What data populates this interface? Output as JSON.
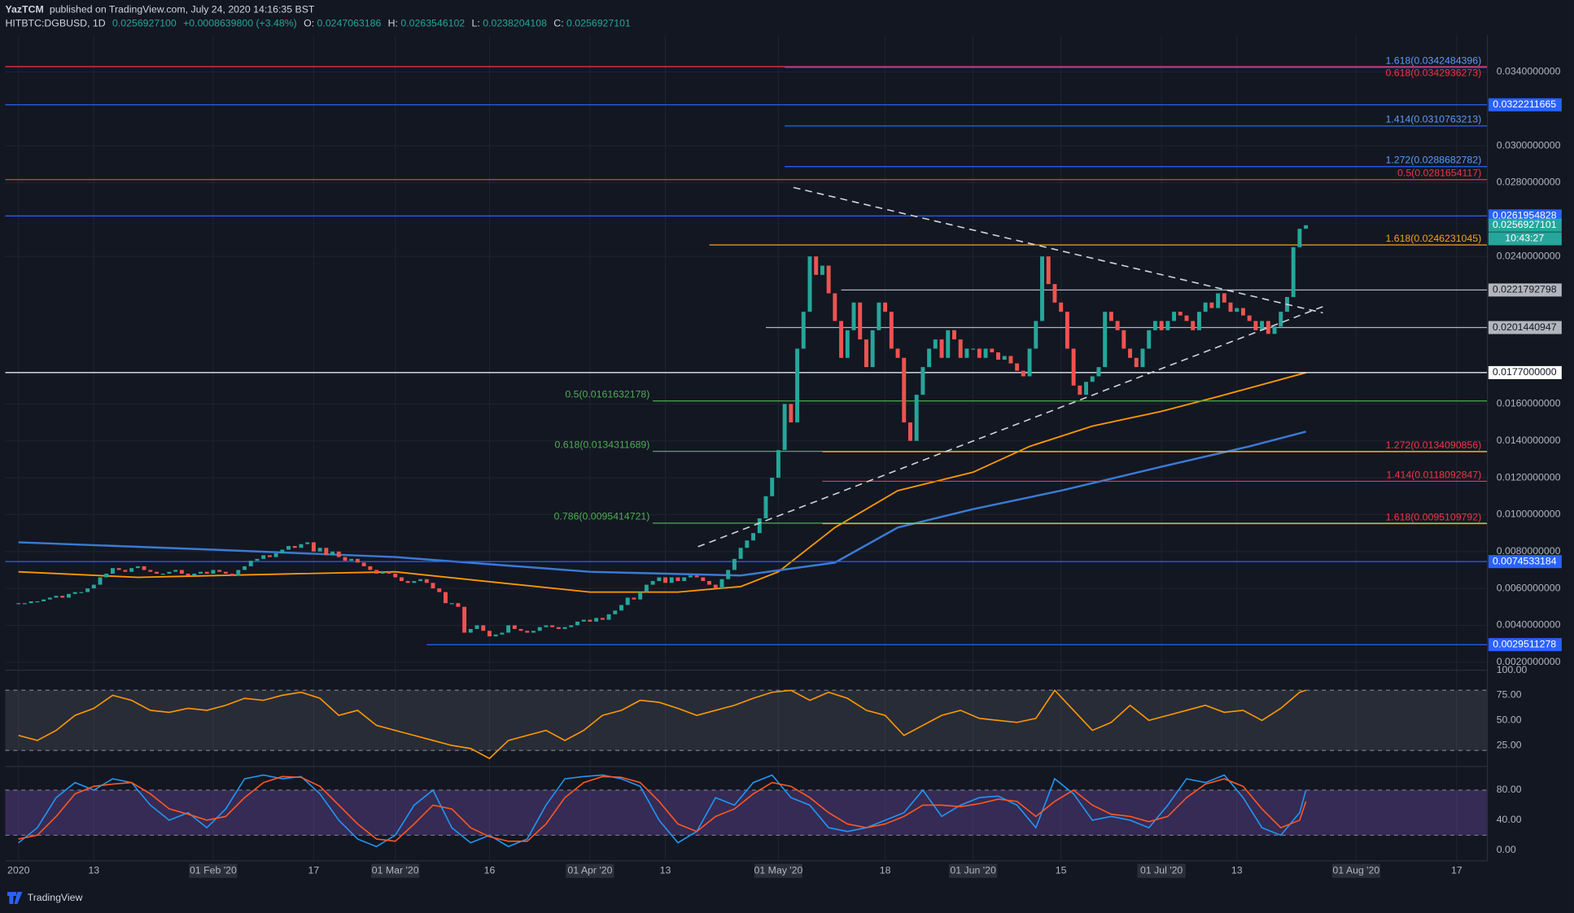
{
  "header": {
    "author": "YazTCM",
    "byline": "published on TradingView.com, July 24, 2020 14:16:35 BST"
  },
  "legend": {
    "symbol": "HITBTC:DGBUSD, 1D",
    "last": "0.0256927100",
    "change": "+0.0008639800 (+3.48%)",
    "open_key": "O:",
    "open": "0.0247063186",
    "high_key": "H:",
    "high": "0.0263546102",
    "low_key": "L:",
    "low": "0.0238204108",
    "close_key": "C:",
    "close": "0.0256927101"
  },
  "footer": {
    "brand": "TradingView"
  },
  "chart_data": [
    {
      "type": "candlestick",
      "up_color": "#26a69a",
      "down_color": "#ef5350",
      "grid": true,
      "xlim": [
        -1.1,
        234.9
      ],
      "ylim": [
        0.001565,
        0.036
      ],
      "yticks": [
        {
          "value": 0.034,
          "label": "0.0340000000"
        },
        {
          "value": 0.03,
          "label": "0.0300000000"
        },
        {
          "value": 0.028,
          "label": "0.0280000000"
        },
        {
          "value": 0.024,
          "label": "0.0240000000"
        },
        {
          "value": 0.016,
          "label": "0.0160000000"
        },
        {
          "value": 0.014,
          "label": "0.0140000000"
        },
        {
          "value": 0.012,
          "label": "0.0120000000"
        },
        {
          "value": 0.01,
          "label": "0.0100000000"
        },
        {
          "value": 0.008,
          "label": "0.0080000000"
        },
        {
          "value": 0.006,
          "label": "0.0060000000"
        },
        {
          "value": 0.004,
          "label": "0.0040000000"
        },
        {
          "value": 0.002,
          "label": "0.0020000000"
        }
      ],
      "xticks": [
        {
          "value": 1,
          "label": "2020"
        },
        {
          "value": 13,
          "label": "13"
        },
        {
          "value": 32,
          "label": "01 Feb '20"
        },
        {
          "value": 48,
          "label": "17"
        },
        {
          "value": 61,
          "label": "01 Mar '20"
        },
        {
          "value": 76,
          "label": "16"
        },
        {
          "value": 92,
          "label": "01 Apr '20"
        },
        {
          "value": 104,
          "label": "13"
        },
        {
          "value": 122,
          "label": "01 May '20"
        },
        {
          "value": 139,
          "label": "18"
        },
        {
          "value": 153,
          "label": "01 Jun '20"
        },
        {
          "value": 167,
          "label": "15"
        },
        {
          "value": 183,
          "label": "01 Jul '20"
        },
        {
          "value": 195,
          "label": "13"
        },
        {
          "value": 214,
          "label": "01 Aug '20"
        },
        {
          "value": 230,
          "label": "17"
        }
      ],
      "x": [
        1,
        2,
        3,
        4,
        5,
        6,
        7,
        8,
        9,
        10,
        11,
        12,
        13,
        14,
        15,
        16,
        17,
        18,
        19,
        20,
        21,
        22,
        23,
        24,
        25,
        26,
        27,
        28,
        29,
        30,
        31,
        32,
        33,
        34,
        35,
        36,
        37,
        38,
        39,
        40,
        41,
        42,
        43,
        44,
        45,
        46,
        47,
        48,
        49,
        50,
        51,
        52,
        53,
        54,
        55,
        56,
        57,
        58,
        59,
        60,
        61,
        62,
        63,
        64,
        65,
        66,
        67,
        68,
        69,
        70,
        71,
        72,
        73,
        74,
        75,
        76,
        77,
        78,
        79,
        80,
        81,
        82,
        83,
        84,
        85,
        86,
        87,
        88,
        89,
        90,
        91,
        92,
        93,
        94,
        95,
        96,
        97,
        98,
        99,
        100,
        101,
        102,
        103,
        104,
        105,
        106,
        107,
        108,
        109,
        110,
        111,
        112,
        113,
        114,
        115,
        116,
        117,
        118,
        119,
        120,
        121,
        122,
        123,
        124,
        125,
        126,
        127,
        128,
        129,
        130,
        131,
        132,
        133,
        134,
        135,
        136,
        137,
        138,
        139,
        140,
        141,
        142,
        143,
        144,
        145,
        146,
        147,
        148,
        149,
        150,
        151,
        152,
        153,
        154,
        155,
        156,
        157,
        158,
        159,
        160,
        161,
        162,
        163,
        164,
        165,
        166,
        167,
        168,
        169,
        170,
        171,
        172,
        173,
        174,
        175,
        176,
        177,
        178,
        179,
        180,
        181,
        182,
        183,
        184,
        185,
        186,
        187,
        188,
        189,
        190,
        191,
        192,
        193,
        194,
        195,
        196,
        197,
        198,
        199,
        200,
        201,
        202,
        203,
        204,
        205,
        206
      ],
      "values": [
        0.0052,
        0.0052,
        0.0053,
        0.0053,
        0.0054,
        0.0055,
        0.0056,
        0.0055,
        0.0057,
        0.0058,
        0.0058,
        0.006,
        0.0062,
        0.0066,
        0.0068,
        0.0071,
        0.007,
        0.0069,
        0.0071,
        0.0072,
        0.007,
        0.0069,
        0.0068,
        0.0068,
        0.0069,
        0.007,
        0.0068,
        0.0067,
        0.0068,
        0.0069,
        0.0068,
        0.007,
        0.0069,
        0.0068,
        0.0067,
        0.007,
        0.0072,
        0.0075,
        0.0076,
        0.0078,
        0.0077,
        0.0079,
        0.0081,
        0.0083,
        0.0082,
        0.0084,
        0.0085,
        0.008,
        0.0082,
        0.0078,
        0.008,
        0.0077,
        0.0075,
        0.0076,
        0.0074,
        0.0072,
        0.007,
        0.0068,
        0.0069,
        0.0068,
        0.0066,
        0.0064,
        0.0063,
        0.0064,
        0.0065,
        0.0063,
        0.006,
        0.0058,
        0.0052,
        0.0052,
        0.005,
        0.0036,
        0.0038,
        0.004,
        0.0037,
        0.0034,
        0.0035,
        0.0036,
        0.004,
        0.0038,
        0.0037,
        0.0036,
        0.0037,
        0.0039,
        0.004,
        0.0039,
        0.0038,
        0.0039,
        0.004,
        0.0042,
        0.0043,
        0.0042,
        0.0044,
        0.0043,
        0.0046,
        0.0048,
        0.0051,
        0.0055,
        0.0054,
        0.0058,
        0.0062,
        0.0064,
        0.0066,
        0.0063,
        0.0066,
        0.0064,
        0.0066,
        0.0067,
        0.0066,
        0.0064,
        0.0062,
        0.006,
        0.0065,
        0.007,
        0.0076,
        0.0082,
        0.0086,
        0.009,
        0.0098,
        0.011,
        0.012,
        0.0135,
        0.016,
        0.015,
        0.019,
        0.021,
        0.024,
        0.023,
        0.0235,
        0.022,
        0.0205,
        0.0185,
        0.02,
        0.0215,
        0.0195,
        0.018,
        0.02,
        0.0215,
        0.021,
        0.019,
        0.0185,
        0.015,
        0.014,
        0.0165,
        0.018,
        0.019,
        0.0195,
        0.0185,
        0.02,
        0.0195,
        0.0185,
        0.019,
        0.019,
        0.0185,
        0.019,
        0.0188,
        0.0184,
        0.0186,
        0.0182,
        0.0178,
        0.0175,
        0.019,
        0.0205,
        0.024,
        0.0225,
        0.0215,
        0.021,
        0.019,
        0.017,
        0.0165,
        0.0172,
        0.0175,
        0.018,
        0.021,
        0.0205,
        0.02,
        0.019,
        0.0185,
        0.018,
        0.019,
        0.02,
        0.0205,
        0.02,
        0.0205,
        0.021,
        0.0208,
        0.0205,
        0.02,
        0.021,
        0.0215,
        0.0212,
        0.022,
        0.0215,
        0.021,
        0.0212,
        0.0208,
        0.0205,
        0.02,
        0.0205,
        0.0198,
        0.0202,
        0.021,
        0.0218,
        0.0245,
        0.0255,
        0.0256927101
      ],
      "last_label": "0.0256927101",
      "last_color": "#26a69a",
      "countdown": "10:43:27",
      "moving_averages": [
        {
          "color": "#ff9800",
          "x": [
            1,
            20,
            46,
            61,
            75,
            92,
            106,
            116,
            122,
            131,
            141,
            153,
            162,
            172,
            183,
            192,
            206
          ],
          "values": [
            0.0069,
            0.0066,
            0.0068,
            0.0069,
            0.0064,
            0.0058,
            0.0058,
            0.0061,
            0.0069,
            0.0093,
            0.0113,
            0.0123,
            0.0137,
            0.0148,
            0.0156,
            0.0164,
            0.0177
          ]
        },
        {
          "color": "#3a7bd5",
          "x": [
            1,
            32,
            61,
            92,
            116,
            131,
            141,
            153,
            167,
            183,
            197,
            206
          ],
          "values": [
            0.0085,
            0.0081,
            0.0077,
            0.0069,
            0.0067,
            0.0074,
            0.0093,
            0.0103,
            0.0113,
            0.0126,
            0.0137,
            0.0145
          ]
        }
      ],
      "trendlines": [
        {
          "x": [
            124.4,
            208.7
          ],
          "values": [
            0.02774,
            0.02094
          ]
        },
        {
          "x": [
            109.2,
            209
          ],
          "values": [
            0.00826,
            0.02132
          ]
        }
      ],
      "levels": [
        {
          "value": 0.0342936273,
          "color": "#f23645",
          "text": "0.618(0.0342936273)",
          "text_below": true
        },
        {
          "value": 0.0342484396,
          "color": "#2962ff",
          "from": 123,
          "text": "1.618(0.0342484396)",
          "text_color": "#5b9cf6"
        },
        {
          "value": 0.0322211665,
          "color": "#2962ff",
          "axis_label": "0.0322211665"
        },
        {
          "value": 0.0310763213,
          "color": "#2962ff",
          "from": 123,
          "text": "1.414(0.0310763213)",
          "text_color": "#5b9cf6"
        },
        {
          "value": 0.0288682782,
          "color": "#2962ff",
          "from": 123,
          "text": "1.272(0.0288682782)",
          "text_color": "#5b9cf6"
        },
        {
          "value": 0.0281654117,
          "color": "#f23645",
          "text": "0.5(0.0281654117)"
        },
        {
          "value": 0.0261954828,
          "color": "#2962ff",
          "axis_label": "0.0261954828"
        },
        {
          "value": 0.0246231045,
          "color": "#f7a21b",
          "from": 111,
          "text": "1.618(0.0246231045)"
        },
        {
          "value": 0.0221792798,
          "color": "#b2b5be",
          "from": 132,
          "axis_label": "0.0221792798"
        },
        {
          "value": 0.0201440947,
          "color": "#b2b5be",
          "from": 120,
          "axis_label": "0.0201440947"
        },
        {
          "value": 0.0177,
          "color": "#ffffff",
          "axis_label": "0.0177000000"
        },
        {
          "value": 0.0161632178,
          "color": "#4caf50",
          "from": 102,
          "text": "0.5(0.0161632178)",
          "text_at": "start"
        },
        {
          "value": 0.0134311689,
          "color": "#4caf50",
          "from": 102,
          "text": "0.618(0.0134311689)",
          "text_at": "start"
        },
        {
          "value": 0.0134090856,
          "color": "#f7a21b",
          "from": 129,
          "text": "1.272(0.0134090856)",
          "text_color": "#f23645"
        },
        {
          "value": 0.0118092847,
          "color": "#f23645",
          "from": 129,
          "text": "1.414(0.0118092847)"
        },
        {
          "value": 0.0095414721,
          "color": "#4caf50",
          "from": 102,
          "text": "0.786(0.0095414721)",
          "text_at": "start"
        },
        {
          "value": 0.0095109792,
          "color": "#f7a21b",
          "from": 129,
          "text": "1.618(0.0095109792)",
          "text_color": "#f23645"
        },
        {
          "value": 0.0074533184,
          "color": "#2962ff",
          "axis_label": "0.0074533184"
        },
        {
          "value": 0.0029511278,
          "color": "#2962ff",
          "from": 66,
          "axis_label": "0.0029511278"
        }
      ]
    },
    {
      "type": "line",
      "color": "#ff9800",
      "ylim": [
        6,
        100
      ],
      "yticks": [
        {
          "value": 100,
          "label": "100.00"
        },
        {
          "value": 75,
          "label": "75.00"
        },
        {
          "value": 50,
          "label": "50.00"
        },
        {
          "value": 25,
          "label": "25.00"
        }
      ],
      "bands": [
        80,
        20
      ],
      "band_color": "rgba(120,123,134,0.22)",
      "x": [
        1,
        4,
        7,
        10,
        13,
        16,
        19,
        22,
        25,
        28,
        31,
        34,
        37,
        40,
        43,
        46,
        49,
        52,
        55,
        58,
        61,
        64,
        67,
        70,
        73,
        76,
        79,
        82,
        85,
        88,
        91,
        94,
        97,
        100,
        103,
        106,
        109,
        112,
        115,
        118,
        121,
        124,
        127,
        130,
        133,
        136,
        139,
        142,
        145,
        148,
        151,
        154,
        157,
        160,
        163,
        166,
        169,
        172,
        175,
        178,
        181,
        184,
        187,
        190,
        193,
        196,
        199,
        202,
        205,
        206
      ],
      "values": [
        35,
        30,
        40,
        55,
        62,
        75,
        70,
        60,
        58,
        62,
        60,
        65,
        72,
        70,
        75,
        78,
        72,
        55,
        60,
        45,
        40,
        35,
        30,
        25,
        22,
        12,
        30,
        35,
        40,
        30,
        40,
        55,
        60,
        70,
        68,
        62,
        55,
        60,
        65,
        72,
        78,
        80,
        70,
        78,
        72,
        60,
        55,
        35,
        45,
        55,
        60,
        52,
        50,
        48,
        52,
        80,
        60,
        40,
        48,
        65,
        50,
        55,
        60,
        65,
        58,
        60,
        50,
        62,
        78,
        80
      ]
    },
    {
      "type": "line",
      "ylim": [
        -14,
        110
      ],
      "yticks": [
        {
          "value": 80,
          "label": "80.00"
        },
        {
          "value": 40,
          "label": "40.00"
        },
        {
          "value": 0,
          "label": "0.00"
        }
      ],
      "bands": [
        80,
        20
      ],
      "band_color": "rgba(126,87,194,0.32)",
      "x": [
        1,
        4,
        7,
        10,
        13,
        16,
        19,
        22,
        25,
        28,
        31,
        34,
        37,
        40,
        43,
        46,
        49,
        52,
        55,
        58,
        61,
        64,
        67,
        70,
        73,
        76,
        79,
        82,
        85,
        88,
        91,
        94,
        97,
        100,
        103,
        106,
        109,
        112,
        115,
        118,
        121,
        124,
        127,
        130,
        133,
        136,
        139,
        142,
        145,
        148,
        151,
        154,
        157,
        160,
        163,
        166,
        169,
        172,
        175,
        178,
        181,
        184,
        187,
        190,
        193,
        196,
        199,
        202,
        205,
        206
      ],
      "series": [
        {
          "color": "#2196f3",
          "values": [
            10,
            30,
            70,
            90,
            80,
            95,
            90,
            60,
            40,
            50,
            30,
            55,
            95,
            100,
            95,
            98,
            75,
            40,
            15,
            5,
            20,
            60,
            80,
            30,
            10,
            20,
            5,
            15,
            60,
            95,
            98,
            100,
            95,
            85,
            40,
            10,
            25,
            70,
            60,
            90,
            100,
            70,
            60,
            30,
            25,
            30,
            40,
            50,
            80,
            45,
            60,
            70,
            72,
            60,
            30,
            95,
            75,
            40,
            45,
            40,
            30,
            60,
            95,
            90,
            100,
            70,
            30,
            20,
            50,
            80
          ]
        },
        {
          "color": "#ff5722",
          "values": [
            15,
            20,
            45,
            75,
            85,
            88,
            90,
            75,
            55,
            48,
            40,
            45,
            70,
            90,
            98,
            97,
            85,
            60,
            35,
            15,
            12,
            35,
            60,
            55,
            30,
            18,
            12,
            12,
            35,
            70,
            90,
            98,
            97,
            90,
            65,
            35,
            25,
            45,
            55,
            75,
            90,
            85,
            70,
            50,
            35,
            30,
            35,
            45,
            60,
            60,
            58,
            62,
            68,
            65,
            45,
            65,
            80,
            60,
            48,
            45,
            38,
            45,
            70,
            88,
            95,
            85,
            55,
            30,
            40,
            65
          ]
        }
      ]
    }
  ]
}
